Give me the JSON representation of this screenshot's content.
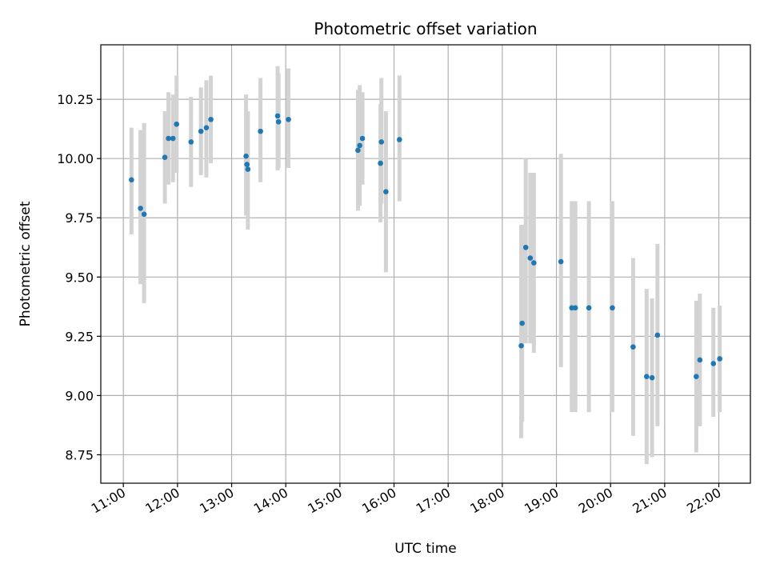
{
  "chart_data": {
    "type": "scatter",
    "title": "Photometric offset variation",
    "xlabel": "UTC time",
    "ylabel": "Photometric offset",
    "x_unit": "UTC time (HH:MM)",
    "xlim": [
      "10:35",
      "22:35"
    ],
    "ylim": [
      8.63,
      10.48
    ],
    "x_ticks": [
      "11:00",
      "12:00",
      "13:00",
      "14:00",
      "15:00",
      "16:00",
      "17:00",
      "18:00",
      "19:00",
      "20:00",
      "21:00",
      "22:00"
    ],
    "y_ticks": [
      8.75,
      9.0,
      9.25,
      9.5,
      9.75,
      10.0,
      10.25
    ],
    "y_tick_labels": [
      "8.75",
      "9.00",
      "9.25",
      "9.50",
      "9.75",
      "10.00",
      "10.25"
    ],
    "grid": true,
    "legend": "none",
    "colors": {
      "marker": "#1f77b4",
      "errorbar": "#d3d3d3"
    },
    "points": [
      {
        "x": "11:09",
        "y": 9.91,
        "err_low": 9.68,
        "err_high": 10.13
      },
      {
        "x": "11:19",
        "y": 9.79,
        "err_low": 9.47,
        "err_high": 10.12
      },
      {
        "x": "11:23",
        "y": 9.765,
        "err_low": 9.39,
        "err_high": 10.15
      },
      {
        "x": "11:46",
        "y": 10.005,
        "err_low": 9.81,
        "err_high": 10.2
      },
      {
        "x": "11:50",
        "y": 10.085,
        "err_low": 9.89,
        "err_high": 10.28
      },
      {
        "x": "11:55",
        "y": 10.085,
        "err_low": 9.9,
        "err_high": 10.27
      },
      {
        "x": "11:59",
        "y": 10.145,
        "err_low": 9.94,
        "err_high": 10.35
      },
      {
        "x": "12:15",
        "y": 10.07,
        "err_low": 9.88,
        "err_high": 10.26
      },
      {
        "x": "12:26",
        "y": 10.115,
        "err_low": 9.93,
        "err_high": 10.3
      },
      {
        "x": "12:32",
        "y": 10.13,
        "err_low": 9.92,
        "err_high": 10.33
      },
      {
        "x": "12:37",
        "y": 10.165,
        "err_low": 9.98,
        "err_high": 10.35
      },
      {
        "x": "13:16",
        "y": 10.01,
        "err_low": 9.76,
        "err_high": 10.27
      },
      {
        "x": "13:17",
        "y": 9.975,
        "err_low": 9.76,
        "err_high": 10.2
      },
      {
        "x": "13:18",
        "y": 9.955,
        "err_low": 9.7,
        "err_high": 10.2
      },
      {
        "x": "13:32",
        "y": 10.115,
        "err_low": 9.9,
        "err_high": 10.34
      },
      {
        "x": "13:51",
        "y": 10.18,
        "err_low": 9.95,
        "err_high": 10.39
      },
      {
        "x": "13:52",
        "y": 10.155,
        "err_low": 9.96,
        "err_high": 10.36
      },
      {
        "x": "14:03",
        "y": 10.165,
        "err_low": 9.96,
        "err_high": 10.38
      },
      {
        "x": "15:20",
        "y": 10.035,
        "err_low": 9.78,
        "err_high": 10.29
      },
      {
        "x": "15:22",
        "y": 10.055,
        "err_low": 9.8,
        "err_high": 10.31
      },
      {
        "x": "15:25",
        "y": 10.085,
        "err_low": 9.89,
        "err_high": 10.28
      },
      {
        "x": "15:45",
        "y": 9.98,
        "err_low": 9.73,
        "err_high": 10.23
      },
      {
        "x": "15:46",
        "y": 10.07,
        "err_low": 9.81,
        "err_high": 10.34
      },
      {
        "x": "15:51",
        "y": 9.86,
        "err_low": 9.52,
        "err_high": 10.2
      },
      {
        "x": "16:06",
        "y": 10.08,
        "err_low": 9.82,
        "err_high": 10.35
      },
      {
        "x": "18:21",
        "y": 9.21,
        "err_low": 8.82,
        "err_high": 9.72
      },
      {
        "x": "18:22",
        "y": 9.305,
        "err_low": 8.89,
        "err_high": 9.72
      },
      {
        "x": "18:26",
        "y": 9.625,
        "err_low": 9.22,
        "err_high": 10.0
      },
      {
        "x": "18:31",
        "y": 9.58,
        "err_low": 9.22,
        "err_high": 9.94
      },
      {
        "x": "18:35",
        "y": 9.56,
        "err_low": 9.18,
        "err_high": 9.94
      },
      {
        "x": "19:05",
        "y": 9.565,
        "err_low": 9.12,
        "err_high": 10.02
      },
      {
        "x": "19:17",
        "y": 9.37,
        "err_low": 8.93,
        "err_high": 9.82
      },
      {
        "x": "19:21",
        "y": 9.37,
        "err_low": 8.93,
        "err_high": 9.82
      },
      {
        "x": "19:36",
        "y": 9.37,
        "err_low": 8.93,
        "err_high": 9.82
      },
      {
        "x": "20:02",
        "y": 9.37,
        "err_low": 8.93,
        "err_high": 9.82
      },
      {
        "x": "20:25",
        "y": 9.205,
        "err_low": 8.83,
        "err_high": 9.58
      },
      {
        "x": "20:40",
        "y": 9.08,
        "err_low": 8.71,
        "err_high": 9.45
      },
      {
        "x": "20:46",
        "y": 9.075,
        "err_low": 8.74,
        "err_high": 9.41
      },
      {
        "x": "20:52",
        "y": 9.255,
        "err_low": 8.87,
        "err_high": 9.64
      },
      {
        "x": "21:35",
        "y": 9.08,
        "err_low": 8.76,
        "err_high": 9.4
      },
      {
        "x": "21:39",
        "y": 9.15,
        "err_low": 8.87,
        "err_high": 9.43
      },
      {
        "x": "21:54",
        "y": 9.135,
        "err_low": 8.91,
        "err_high": 9.37
      },
      {
        "x": "22:01",
        "y": 9.155,
        "err_low": 8.93,
        "err_high": 9.38
      }
    ]
  }
}
